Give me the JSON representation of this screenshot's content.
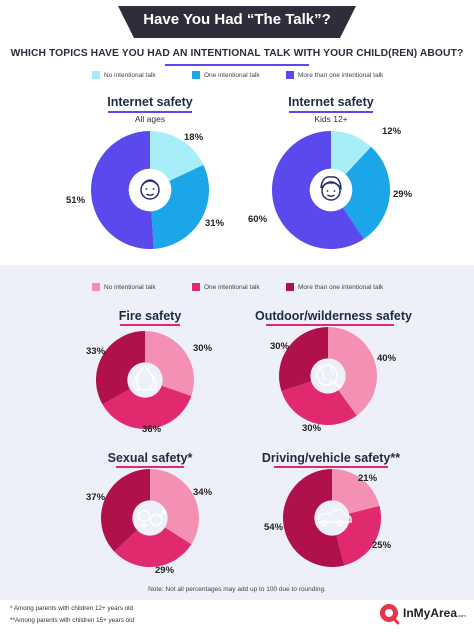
{
  "header": {
    "title": "Have You Had “The Talk”?",
    "subtitle": "WHICH TOPICS HAVE YOU HAD AN INTENTIONAL TALK WITH YOUR CHILD(REN) ABOUT?"
  },
  "colors": {
    "title_bg": "#2e2d3b",
    "accent_underline": "#5b49f0",
    "blue_none": "#a8eef9",
    "blue_one": "#1aa6e8",
    "blue_more": "#5a49ec",
    "pink_none": "#f590b5",
    "pink_one": "#e12a6d",
    "pink_more": "#b0114b"
  },
  "legend_top": [
    "No intentional talk",
    "One intentional talk",
    "More than one intentional talk"
  ],
  "legend_bottom": [
    "No intentional talk",
    "One intentional talk",
    "More than one intentional talk"
  ],
  "icons": [
    "baby-face-icon",
    "child-face-icon",
    "fire-icon",
    "globe-icon",
    "gender-icon",
    "car-icon"
  ],
  "chart_data": [
    {
      "type": "pie",
      "title": "Internet safety",
      "subtitle": "All ages",
      "categories": [
        "No intentional talk",
        "One intentional talk",
        "More than one intentional talk"
      ],
      "values": [
        18,
        31,
        51
      ],
      "labels": [
        "18%",
        "31%",
        "51%"
      ]
    },
    {
      "type": "pie",
      "title": "Internet safety",
      "subtitle": "Kids 12+",
      "categories": [
        "No intentional talk",
        "One intentional talk",
        "More than one intentional talk"
      ],
      "values": [
        12,
        29,
        60
      ],
      "labels": [
        "12%",
        "29%",
        "60%"
      ]
    },
    {
      "type": "pie",
      "title": "Fire safety",
      "categories": [
        "No intentional talk",
        "One intentional talk",
        "More than one intentional talk"
      ],
      "values": [
        30,
        36,
        33
      ],
      "labels": [
        "30%",
        "36%",
        "33%"
      ]
    },
    {
      "type": "pie",
      "title": "Outdoor/wilderness safety",
      "categories": [
        "No intentional talk",
        "One intentional talk",
        "More than one intentional talk"
      ],
      "values": [
        40,
        30,
        30
      ],
      "labels": [
        "40%",
        "30%",
        "30%"
      ]
    },
    {
      "type": "pie",
      "title": "Sexual safety*",
      "categories": [
        "No intentional talk",
        "One intentional talk",
        "More than one intentional talk"
      ],
      "values": [
        34,
        29,
        37
      ],
      "labels": [
        "34%",
        "29%",
        "37%"
      ]
    },
    {
      "type": "pie",
      "title": "Driving/vehicle safety**",
      "categories": [
        "No intentional talk",
        "One intentional talk",
        "More than one intentional talk"
      ],
      "values": [
        21,
        25,
        54
      ],
      "labels": [
        "21%",
        "25%",
        "54%"
      ]
    }
  ],
  "footer": {
    "note": "Note: Not all percentages may add up to 100 due to rounding.",
    "footnote1": "* Among parents with children 12+ years old",
    "footnote2": "**Among parents with children 15+ years old",
    "logo": "InMyArea",
    "logo_suffix": ".com"
  }
}
